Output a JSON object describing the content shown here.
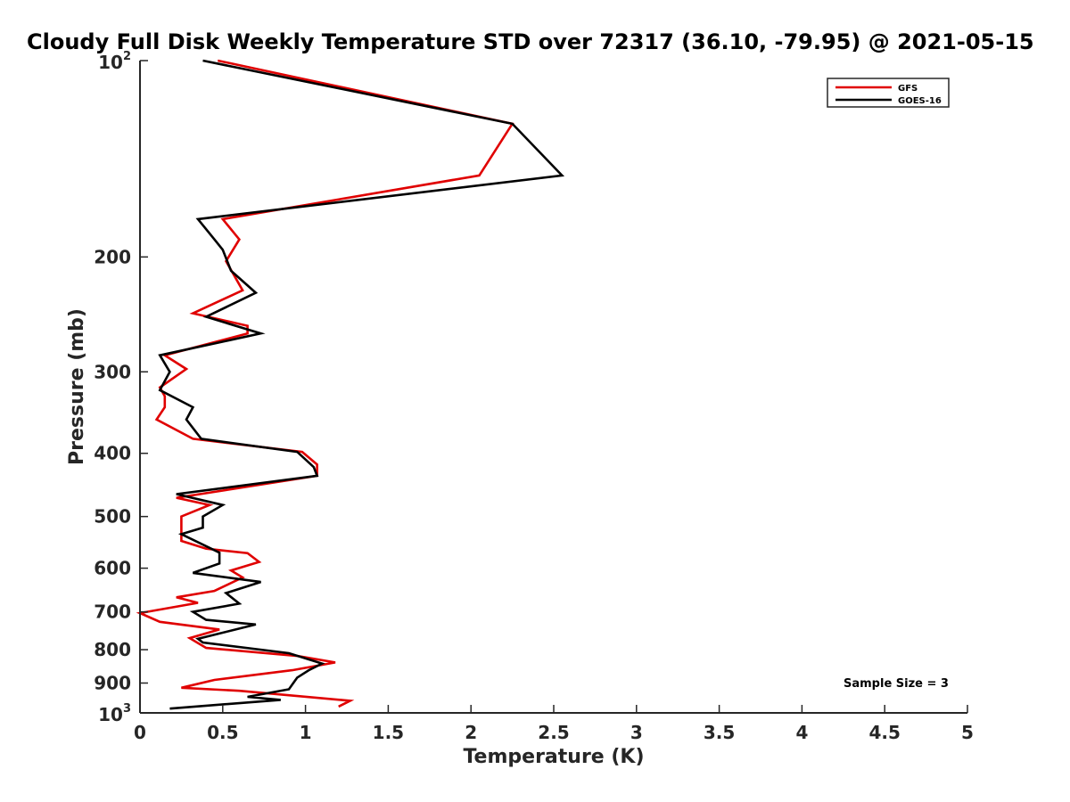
{
  "chart_data": {
    "type": "line",
    "title": "Cloudy Full Disk Weekly Temperature STD over 72317 (36.10, -79.95) @ 2021-05-15",
    "xlabel": "Temperature (K)",
    "ylabel": "Pressure (mb)",
    "xlim": [
      0,
      5
    ],
    "ylim": [
      100,
      1000
    ],
    "y_scale": "log",
    "y_reversed": true,
    "grid": false,
    "legend_position": "top-right",
    "x_ticks": [
      "0",
      "0.5",
      "1",
      "1.5",
      "2",
      "2.5",
      "3",
      "3.5",
      "4",
      "4.5",
      "5"
    ],
    "y_ticks": [
      {
        "value": 100,
        "base": "10",
        "exp": "2"
      },
      {
        "value": 200,
        "label": "200"
      },
      {
        "value": 300,
        "label": "300"
      },
      {
        "value": 400,
        "label": "400"
      },
      {
        "value": 500,
        "label": "500"
      },
      {
        "value": 600,
        "label": "600"
      },
      {
        "value": 700,
        "label": "700"
      },
      {
        "value": 800,
        "label": "800"
      },
      {
        "value": 900,
        "label": "900"
      },
      {
        "value": 1000,
        "base": "10",
        "exp": "3"
      }
    ],
    "annotation": "Sample Size = 3",
    "series": [
      {
        "name": "GFS",
        "color": "#e00000",
        "points": [
          [
            0.47,
            100
          ],
          [
            2.25,
            125
          ],
          [
            2.05,
            150
          ],
          [
            0.5,
            175
          ],
          [
            0.6,
            188
          ],
          [
            0.52,
            203
          ],
          [
            0.62,
            225
          ],
          [
            0.32,
            244
          ],
          [
            0.65,
            255
          ],
          [
            0.65,
            262
          ],
          [
            0.15,
            283
          ],
          [
            0.28,
            297
          ],
          [
            0.12,
            317
          ],
          [
            0.15,
            327
          ],
          [
            0.15,
            340
          ],
          [
            0.1,
            355
          ],
          [
            0.32,
            380
          ],
          [
            0.98,
            398
          ],
          [
            1.07,
            416
          ],
          [
            1.07,
            433
          ],
          [
            0.22,
            468
          ],
          [
            0.42,
            480
          ],
          [
            0.25,
            500
          ],
          [
            0.25,
            533
          ],
          [
            0.25,
            545
          ],
          [
            0.4,
            560
          ],
          [
            0.65,
            569
          ],
          [
            0.72,
            587
          ],
          [
            0.55,
            605
          ],
          [
            0.62,
            620
          ],
          [
            0.45,
            650
          ],
          [
            0.22,
            665
          ],
          [
            0.35,
            678
          ],
          [
            0.0,
            703
          ],
          [
            0.12,
            725
          ],
          [
            0.48,
            745
          ],
          [
            0.3,
            768
          ],
          [
            0.4,
            795
          ],
          [
            0.95,
            818
          ],
          [
            1.18,
            837
          ],
          [
            0.92,
            860
          ],
          [
            0.45,
            890
          ],
          [
            0.25,
            915
          ],
          [
            0.6,
            925
          ],
          [
            1.27,
            958
          ],
          [
            1.2,
            978
          ]
        ]
      },
      {
        "name": "GOES-16",
        "color": "#000000",
        "points": [
          [
            0.38,
            100
          ],
          [
            2.25,
            125
          ],
          [
            2.55,
            150
          ],
          [
            0.35,
            175
          ],
          [
            0.45,
            188
          ],
          [
            0.5,
            195
          ],
          [
            0.55,
            210
          ],
          [
            0.7,
            227
          ],
          [
            0.4,
            247
          ],
          [
            0.73,
            262
          ],
          [
            0.12,
            283
          ],
          [
            0.18,
            300
          ],
          [
            0.12,
            320
          ],
          [
            0.32,
            340
          ],
          [
            0.28,
            355
          ],
          [
            0.37,
            380
          ],
          [
            0.95,
            398
          ],
          [
            1.05,
            420
          ],
          [
            1.07,
            433
          ],
          [
            0.22,
            462
          ],
          [
            0.5,
            480
          ],
          [
            0.38,
            500
          ],
          [
            0.38,
            520
          ],
          [
            0.25,
            532
          ],
          [
            0.48,
            568
          ],
          [
            0.48,
            590
          ],
          [
            0.32,
            610
          ],
          [
            0.73,
            630
          ],
          [
            0.52,
            655
          ],
          [
            0.6,
            680
          ],
          [
            0.32,
            700
          ],
          [
            0.4,
            720
          ],
          [
            0.7,
            732
          ],
          [
            0.35,
            770
          ],
          [
            0.38,
            780
          ],
          [
            0.9,
            810
          ],
          [
            1.1,
            840
          ],
          [
            1.02,
            860
          ],
          [
            0.95,
            883
          ],
          [
            0.9,
            920
          ],
          [
            0.65,
            945
          ],
          [
            0.85,
            955
          ],
          [
            0.18,
            985
          ]
        ]
      }
    ]
  }
}
